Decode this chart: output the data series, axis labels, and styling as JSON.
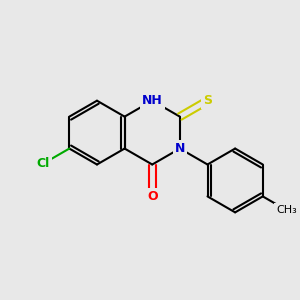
{
  "bg_color": "#e8e8e8",
  "bond_color": "#000000",
  "N_color": "#0000cc",
  "O_color": "#ff0000",
  "S_color": "#cccc00",
  "Cl_color": "#00aa00",
  "lw": 1.5,
  "dbo": 0.12,
  "figsize": [
    3.0,
    3.0
  ],
  "dpi": 100,
  "xlim": [
    0,
    10
  ],
  "ylim": [
    0,
    10
  ]
}
